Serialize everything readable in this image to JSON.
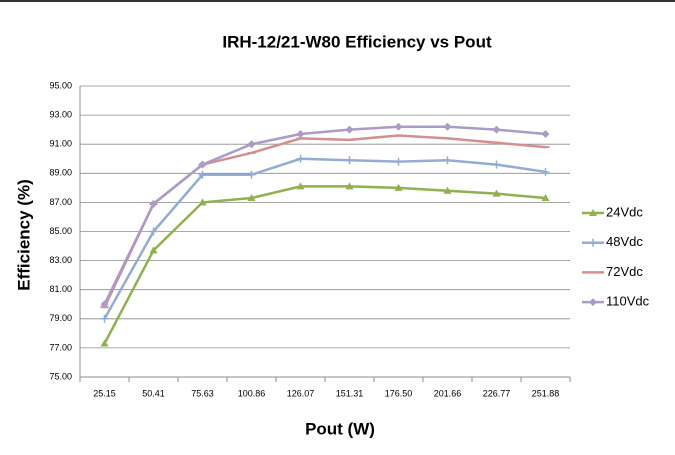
{
  "chart_data": {
    "type": "line",
    "title": "IRH-12/21-W80 Efficiency vs Pout",
    "x_label": "Pout (W)",
    "y_label": "Efficiency (%)",
    "categories": [
      "25.15",
      "50.41",
      "75.63",
      "100.86",
      "126.07",
      "151.31",
      "176.50",
      "201.66",
      "226.77",
      "251.88"
    ],
    "series": [
      {
        "name": "24Vdc",
        "color": "#8fb14f",
        "marker": "triangle",
        "values": [
          77.3,
          83.7,
          87.0,
          87.3,
          88.1,
          88.1,
          88.0,
          87.8,
          87.6,
          87.3
        ]
      },
      {
        "name": "48Vdc",
        "color": "#93acd3",
        "marker": "plus",
        "values": [
          79.0,
          85.0,
          88.9,
          88.9,
          90.0,
          89.9,
          89.8,
          89.9,
          89.6,
          89.1
        ]
      },
      {
        "name": "72Vdc",
        "color": "#d48f8e",
        "marker": "dash",
        "values": [
          79.8,
          86.9,
          89.6,
          90.4,
          91.4,
          91.3,
          91.6,
          91.4,
          91.1,
          90.8
        ]
      },
      {
        "name": "110Vdc",
        "color": "#ab9bc6",
        "marker": "diamond",
        "values": [
          80.0,
          86.9,
          89.6,
          91.0,
          91.7,
          92.0,
          92.2,
          92.2,
          92.0,
          91.7
        ]
      }
    ],
    "ylim": [
      75,
      95
    ],
    "yticks": [
      {
        "value": 75,
        "label": "75.00"
      },
      {
        "value": 77,
        "label": "77.00"
      },
      {
        "value": 79,
        "label": "79.00"
      },
      {
        "value": 81,
        "label": "81.00"
      },
      {
        "value": 83,
        "label": "83.00"
      },
      {
        "value": 85,
        "label": "85.00"
      },
      {
        "value": 87,
        "label": "87.00"
      },
      {
        "value": 89,
        "label": "89.00"
      },
      {
        "value": 91,
        "label": "91.00"
      },
      {
        "value": 93,
        "label": "93.00"
      },
      {
        "value": 95,
        "label": "95.00"
      }
    ],
    "grid": true,
    "legend": "right"
  }
}
